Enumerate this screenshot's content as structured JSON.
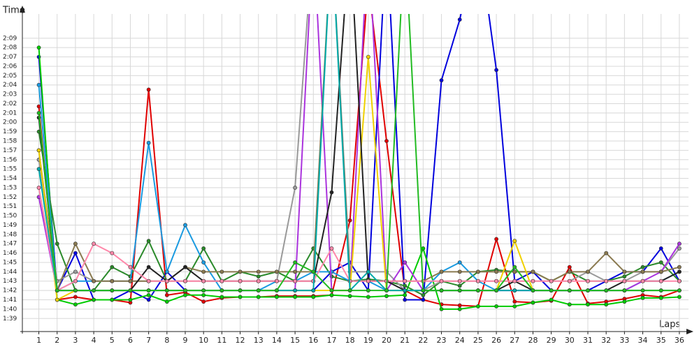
{
  "chart_data": {
    "type": "line",
    "y_label": "Time",
    "x_label": "Laps",
    "x": [
      1,
      2,
      3,
      4,
      5,
      6,
      7,
      8,
      9,
      10,
      11,
      12,
      13,
      14,
      15,
      16,
      17,
      18,
      19,
      20,
      21,
      22,
      23,
      24,
      25,
      26,
      27,
      28,
      29,
      30,
      31,
      32,
      33,
      34,
      35,
      36
    ],
    "xlim": [
      0.1,
      36.5
    ],
    "xticks": [
      1,
      2,
      3,
      4,
      5,
      6,
      7,
      8,
      9,
      10,
      11,
      12,
      13,
      14,
      15,
      16,
      17,
      18,
      19,
      20,
      21,
      22,
      23,
      24,
      25,
      26,
      27,
      28,
      29,
      30,
      31,
      32,
      33,
      34,
      35,
      36
    ],
    "ylim": [
      97.6,
      131.6
    ],
    "yticks": [
      {
        "value": 99,
        "label": "1:39"
      },
      {
        "value": 100,
        "label": "1:40"
      },
      {
        "value": 101,
        "label": "1:41"
      },
      {
        "value": 102,
        "label": "1:42"
      },
      {
        "value": 103,
        "label": "1:43"
      },
      {
        "value": 104,
        "label": "1:44"
      },
      {
        "value": 105,
        "label": "1:45"
      },
      {
        "value": 106,
        "label": "1:46"
      },
      {
        "value": 107,
        "label": "1:47"
      },
      {
        "value": 108,
        "label": "1:48"
      },
      {
        "value": 109,
        "label": "1:49"
      },
      {
        "value": 110,
        "label": "1:50"
      },
      {
        "value": 111,
        "label": "1:51"
      },
      {
        "value": 112,
        "label": "1:52"
      },
      {
        "value": 113,
        "label": "1:53"
      },
      {
        "value": 114,
        "label": "1:54"
      },
      {
        "value": 115,
        "label": "1:55"
      },
      {
        "value": 116,
        "label": "1:56"
      },
      {
        "value": 117,
        "label": "1:57"
      },
      {
        "value": 118,
        "label": "1:58"
      },
      {
        "value": 119,
        "label": "1:59"
      },
      {
        "value": 120,
        "label": "2:00"
      },
      {
        "value": 121,
        "label": "2:01"
      },
      {
        "value": 122,
        "label": "2:02"
      },
      {
        "value": 123,
        "label": "2:03"
      },
      {
        "value": 124,
        "label": "2:04"
      },
      {
        "value": 125,
        "label": "2:05"
      },
      {
        "value": 126,
        "label": "2:06"
      },
      {
        "value": 127,
        "label": "2:07"
      },
      {
        "value": 128,
        "label": "2:08"
      },
      {
        "value": 129,
        "label": "2:09"
      }
    ],
    "grid": true,
    "series": [
      {
        "color": "#e00000",
        "values": [
          121.7,
          101,
          101.3,
          101,
          101,
          100.7,
          123.5,
          101.5,
          101.8,
          100.8,
          101.2,
          101.3,
          101.3,
          101.4,
          101.4,
          101.4,
          101.5,
          109.5,
          135,
          118,
          102,
          101,
          100.5,
          100.4,
          100.3,
          107.5,
          100.8,
          100.7,
          100.9,
          104.5,
          100.6,
          100.8,
          101.1,
          101.5,
          101.3,
          102
        ]
      },
      {
        "color": "#0000dd",
        "values": [
          127,
          102,
          106,
          101,
          101,
          102,
          101,
          104,
          102,
          102,
          102,
          102,
          102,
          102,
          102,
          102,
          104,
          105,
          102,
          140,
          101,
          101,
          124.5,
          131,
          140,
          125.6,
          103,
          104,
          102,
          102,
          102,
          103,
          104,
          104,
          106.5,
          103
        ]
      },
      {
        "color": "#00cc00",
        "values": [
          128,
          101,
          100.5,
          101,
          101,
          101,
          101.5,
          100.8,
          101.5,
          101.5,
          101.3,
          101.3,
          101.3,
          101.3,
          101.3,
          101.3,
          101.5,
          101.4,
          101.3,
          101.4,
          101.5,
          106.5,
          100,
          100,
          100.3,
          100.3,
          100.3,
          100.7,
          101,
          100.5,
          100.5,
          100.5,
          100.8,
          101.2,
          101.2,
          101.3
        ]
      },
      {
        "color": "#2a8a2a",
        "values": [
          119,
          107,
          102,
          102,
          104.5,
          103.5,
          107.3,
          103,
          103,
          106.5,
          103,
          104,
          103.5,
          104,
          103,
          106.5,
          103.5,
          103,
          103.2,
          103,
          102.5,
          101.5,
          103,
          102.5,
          104,
          104.2,
          104,
          104,
          103,
          104,
          103,
          103,
          103.5,
          104.5,
          105,
          103
        ]
      },
      {
        "color": "#1a9ae0",
        "values": [
          124,
          102,
          103,
          103,
          103,
          103,
          117.8,
          104,
          109,
          105,
          102,
          102,
          102,
          103,
          103,
          104,
          104,
          103,
          103,
          102,
          102,
          102,
          104,
          105,
          103,
          102,
          102,
          102,
          102,
          102,
          102,
          102,
          102,
          103,
          103,
          104
        ]
      },
      {
        "color": "#999999",
        "values": [
          116,
          103,
          104,
          103,
          103,
          103,
          103,
          103,
          103,
          103,
          103,
          103,
          103,
          103,
          113,
          140,
          140,
          104,
          104,
          104,
          102,
          102,
          103,
          103,
          103,
          103,
          103,
          103,
          103,
          103,
          104,
          103,
          103,
          104,
          104,
          106.5
        ]
      },
      {
        "color": "#aa33dd",
        "values": [
          112,
          102,
          102,
          102,
          102,
          102,
          102,
          102,
          102,
          102,
          102,
          102,
          102,
          102,
          102,
          140,
          102,
          102,
          140,
          102,
          105,
          102,
          102,
          102,
          102,
          102,
          102,
          102,
          102,
          102,
          102,
          102,
          102,
          103,
          104,
          107
        ]
      },
      {
        "color": "#8a7a50",
        "values": [
          117,
          102,
          107,
          103,
          103,
          103,
          103,
          103,
          104.5,
          104,
          104,
          104,
          104,
          104,
          104,
          104,
          140,
          103,
          103,
          103,
          103,
          103,
          104,
          104,
          104,
          104,
          104,
          104,
          103,
          104,
          104,
          106,
          104,
          104,
          104,
          104.5
        ]
      },
      {
        "color": "#f0d000",
        "values": [
          117,
          101,
          102,
          102,
          102,
          102,
          102,
          102,
          102,
          102,
          102,
          102,
          102,
          102,
          102,
          102,
          102,
          102,
          127,
          102,
          102,
          102,
          102,
          102,
          102,
          102,
          107.3,
          102,
          102,
          102,
          102,
          102,
          102,
          102,
          102,
          102
        ]
      },
      {
        "color": "#222222",
        "values": [
          120.5,
          102,
          102,
          102,
          102,
          102,
          104.5,
          103,
          104.5,
          103,
          103,
          103,
          103,
          103,
          103,
          103,
          112.5,
          140,
          103,
          103,
          102,
          102,
          102,
          102,
          102,
          102,
          103,
          102,
          102,
          102,
          102,
          102,
          103,
          103,
          103,
          104
        ]
      },
      {
        "color": "#ff88aa",
        "values": [
          113,
          102,
          103,
          107,
          106,
          104.5,
          103,
          103,
          103,
          103,
          103,
          103,
          103,
          103,
          103,
          103,
          106.5,
          103,
          103,
          103,
          103,
          103,
          103,
          103,
          103,
          103,
          103,
          103,
          103,
          103,
          103,
          103,
          103,
          103,
          103,
          103
        ]
      },
      {
        "color": "#00aaaa",
        "values": [
          115,
          102,
          102,
          102,
          102,
          102,
          102,
          102,
          102,
          102,
          102,
          102,
          102,
          102,
          102,
          102,
          140,
          102,
          104,
          102,
          102,
          102,
          102,
          102,
          102,
          102,
          102,
          102,
          102,
          102,
          102,
          102,
          102,
          102,
          102,
          102
        ]
      },
      {
        "color": "#22bb22",
        "values": [
          121,
          102,
          102,
          102,
          102,
          102,
          102,
          102,
          102,
          102,
          102,
          102,
          102,
          102,
          105,
          104,
          102,
          102,
          102,
          102,
          140,
          102,
          102,
          102,
          102,
          102,
          104.5,
          102,
          102,
          102,
          102,
          102,
          102,
          102,
          102,
          102
        ]
      }
    ]
  }
}
